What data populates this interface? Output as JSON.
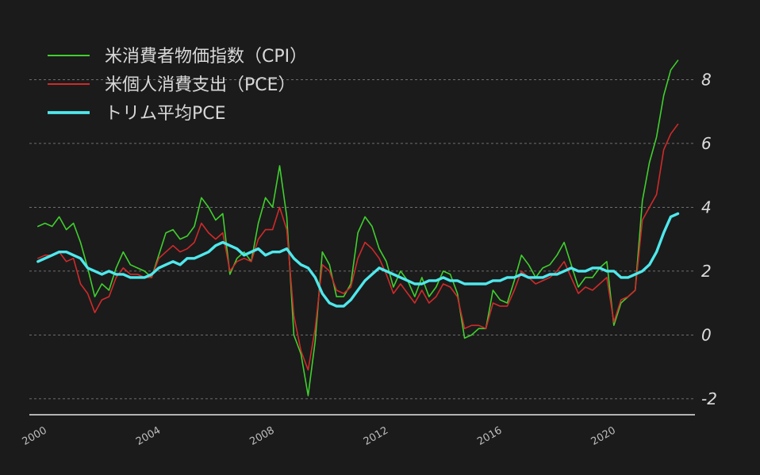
{
  "chart_data": {
    "type": "line",
    "ylim": [
      -2.5,
      9.5
    ],
    "xlim": [
      1999.7,
      2023.1
    ],
    "yticks": [
      "-2",
      "0",
      "2",
      "4",
      "6",
      "8"
    ],
    "ytick_values": [
      -2,
      0,
      2,
      4,
      6,
      8
    ],
    "xticks": [
      "2000",
      "2004",
      "2008",
      "2012",
      "2016",
      "2020"
    ],
    "xtick_values": [
      2000,
      2004,
      2008,
      2012,
      2016,
      2020
    ],
    "grid": "horizontal-dashed",
    "y_axis_side": "right",
    "legend_position": "top-left",
    "colors": {
      "cpi": "#3fcf2e",
      "pce": "#d02a2a",
      "trim": "#4fe8ec"
    },
    "series": [
      {
        "name": "米消費者物価指数（CPI）",
        "color": "#3fcf2e",
        "x": [
          2000.0,
          2000.25,
          2000.5,
          2000.75,
          2001.0,
          2001.25,
          2001.5,
          2001.75,
          2002.0,
          2002.25,
          2002.5,
          2002.75,
          2003.0,
          2003.25,
          2003.5,
          2003.75,
          2004.0,
          2004.25,
          2004.5,
          2004.75,
          2005.0,
          2005.25,
          2005.5,
          2005.75,
          2006.0,
          2006.25,
          2006.5,
          2006.75,
          2007.0,
          2007.25,
          2007.5,
          2007.75,
          2008.0,
          2008.25,
          2008.5,
          2008.75,
          2009.0,
          2009.25,
          2009.5,
          2009.75,
          2010.0,
          2010.25,
          2010.5,
          2010.75,
          2011.0,
          2011.25,
          2011.5,
          2011.75,
          2012.0,
          2012.25,
          2012.5,
          2012.75,
          2013.0,
          2013.25,
          2013.5,
          2013.75,
          2014.0,
          2014.25,
          2014.5,
          2014.75,
          2015.0,
          2015.25,
          2015.5,
          2015.75,
          2016.0,
          2016.25,
          2016.5,
          2016.75,
          2017.0,
          2017.25,
          2017.5,
          2017.75,
          2018.0,
          2018.25,
          2018.5,
          2018.75,
          2019.0,
          2019.25,
          2019.5,
          2019.75,
          2020.0,
          2020.25,
          2020.5,
          2020.75,
          2021.0,
          2021.25,
          2021.5,
          2021.75,
          2022.0,
          2022.25,
          2022.5
        ],
        "values": [
          3.4,
          3.5,
          3.4,
          3.7,
          3.3,
          3.5,
          2.9,
          2.1,
          1.2,
          1.6,
          1.4,
          2.1,
          2.6,
          2.2,
          2.1,
          2.0,
          1.8,
          2.5,
          3.2,
          3.3,
          3.0,
          3.1,
          3.4,
          4.3,
          4.0,
          3.6,
          3.8,
          1.9,
          2.4,
          2.6,
          2.3,
          3.5,
          4.3,
          4.0,
          5.3,
          3.7,
          0.0,
          -0.6,
          -1.9,
          -0.2,
          2.6,
          2.2,
          1.2,
          1.2,
          1.6,
          3.2,
          3.7,
          3.4,
          2.7,
          2.3,
          1.5,
          2.0,
          1.7,
          1.2,
          1.8,
          1.2,
          1.5,
          2.0,
          1.9,
          1.3,
          -0.1,
          0.0,
          0.2,
          0.2,
          1.4,
          1.1,
          1.0,
          1.7,
          2.5,
          2.2,
          1.8,
          2.1,
          2.2,
          2.5,
          2.9,
          2.2,
          1.5,
          1.8,
          1.8,
          2.1,
          2.3,
          0.3,
          1.0,
          1.2,
          1.4,
          4.2,
          5.4,
          6.2,
          7.5,
          8.3,
          8.6
        ]
      },
      {
        "name": "米個人消費支出（PCE）",
        "color": "#d02a2a",
        "x": [
          2000.0,
          2000.25,
          2000.5,
          2000.75,
          2001.0,
          2001.25,
          2001.5,
          2001.75,
          2002.0,
          2002.25,
          2002.5,
          2002.75,
          2003.0,
          2003.25,
          2003.5,
          2003.75,
          2004.0,
          2004.25,
          2004.5,
          2004.75,
          2005.0,
          2005.25,
          2005.5,
          2005.75,
          2006.0,
          2006.25,
          2006.5,
          2006.75,
          2007.0,
          2007.25,
          2007.5,
          2007.75,
          2008.0,
          2008.25,
          2008.5,
          2008.75,
          2009.0,
          2009.25,
          2009.5,
          2009.75,
          2010.0,
          2010.25,
          2010.5,
          2010.75,
          2011.0,
          2011.25,
          2011.5,
          2011.75,
          2012.0,
          2012.25,
          2012.5,
          2012.75,
          2013.0,
          2013.25,
          2013.5,
          2013.75,
          2014.0,
          2014.25,
          2014.5,
          2014.75,
          2015.0,
          2015.25,
          2015.5,
          2015.75,
          2016.0,
          2016.25,
          2016.5,
          2016.75,
          2017.0,
          2017.25,
          2017.5,
          2017.75,
          2018.0,
          2018.25,
          2018.5,
          2018.75,
          2019.0,
          2019.25,
          2019.5,
          2019.75,
          2020.0,
          2020.25,
          2020.5,
          2020.75,
          2021.0,
          2021.25,
          2021.5,
          2021.75,
          2022.0,
          2022.25,
          2022.5
        ],
        "values": [
          2.4,
          2.5,
          2.5,
          2.6,
          2.3,
          2.4,
          1.6,
          1.3,
          0.7,
          1.1,
          1.2,
          1.8,
          2.1,
          1.9,
          1.9,
          1.8,
          1.8,
          2.4,
          2.6,
          2.8,
          2.6,
          2.7,
          2.9,
          3.5,
          3.2,
          3.0,
          3.2,
          2.0,
          2.3,
          2.4,
          2.3,
          3.0,
          3.3,
          3.3,
          4.0,
          3.3,
          0.6,
          -0.5,
          -1.1,
          0.2,
          2.2,
          2.0,
          1.4,
          1.3,
          1.5,
          2.4,
          2.9,
          2.7,
          2.4,
          1.9,
          1.3,
          1.6,
          1.3,
          1.0,
          1.4,
          1.0,
          1.2,
          1.6,
          1.5,
          1.2,
          0.2,
          0.3,
          0.3,
          0.2,
          1.0,
          0.9,
          0.9,
          1.4,
          2.0,
          1.8,
          1.6,
          1.7,
          1.8,
          2.0,
          2.3,
          1.8,
          1.3,
          1.5,
          1.4,
          1.6,
          1.8,
          0.4,
          1.1,
          1.2,
          1.4,
          3.6,
          4.0,
          4.4,
          5.8,
          6.3,
          6.6
        ]
      },
      {
        "name": "トリム平均PCE",
        "color": "#4fe8ec",
        "x": [
          2000.0,
          2000.25,
          2000.5,
          2000.75,
          2001.0,
          2001.25,
          2001.5,
          2001.75,
          2002.0,
          2002.25,
          2002.5,
          2002.75,
          2003.0,
          2003.25,
          2003.5,
          2003.75,
          2004.0,
          2004.25,
          2004.5,
          2004.75,
          2005.0,
          2005.25,
          2005.5,
          2005.75,
          2006.0,
          2006.25,
          2006.5,
          2006.75,
          2007.0,
          2007.25,
          2007.5,
          2007.75,
          2008.0,
          2008.25,
          2008.5,
          2008.75,
          2009.0,
          2009.25,
          2009.5,
          2009.75,
          2010.0,
          2010.25,
          2010.5,
          2010.75,
          2011.0,
          2011.25,
          2011.5,
          2011.75,
          2012.0,
          2012.25,
          2012.5,
          2012.75,
          2013.0,
          2013.25,
          2013.5,
          2013.75,
          2014.0,
          2014.25,
          2014.5,
          2014.75,
          2015.0,
          2015.25,
          2015.5,
          2015.75,
          2016.0,
          2016.25,
          2016.5,
          2016.75,
          2017.0,
          2017.25,
          2017.5,
          2017.75,
          2018.0,
          2018.25,
          2018.5,
          2018.75,
          2019.0,
          2019.25,
          2019.5,
          2019.75,
          2020.0,
          2020.25,
          2020.5,
          2020.75,
          2021.0,
          2021.25,
          2021.5,
          2021.75,
          2022.0,
          2022.25,
          2022.5
        ],
        "values": [
          2.3,
          2.4,
          2.5,
          2.6,
          2.6,
          2.5,
          2.4,
          2.1,
          2.0,
          1.9,
          2.0,
          1.9,
          1.9,
          1.8,
          1.8,
          1.8,
          1.9,
          2.1,
          2.2,
          2.3,
          2.2,
          2.4,
          2.4,
          2.5,
          2.6,
          2.8,
          2.9,
          2.8,
          2.7,
          2.5,
          2.6,
          2.7,
          2.5,
          2.6,
          2.6,
          2.7,
          2.4,
          2.2,
          2.1,
          1.8,
          1.3,
          1.0,
          0.9,
          0.9,
          1.1,
          1.4,
          1.7,
          1.9,
          2.1,
          2.0,
          1.9,
          1.8,
          1.7,
          1.6,
          1.6,
          1.7,
          1.7,
          1.8,
          1.7,
          1.7,
          1.6,
          1.6,
          1.6,
          1.6,
          1.7,
          1.7,
          1.8,
          1.8,
          1.9,
          1.8,
          1.8,
          1.8,
          1.9,
          1.9,
          2.0,
          2.1,
          2.0,
          2.0,
          2.1,
          2.1,
          2.0,
          2.0,
          1.8,
          1.8,
          1.9,
          2.0,
          2.2,
          2.6,
          3.2,
          3.7,
          3.8
        ]
      }
    ]
  }
}
